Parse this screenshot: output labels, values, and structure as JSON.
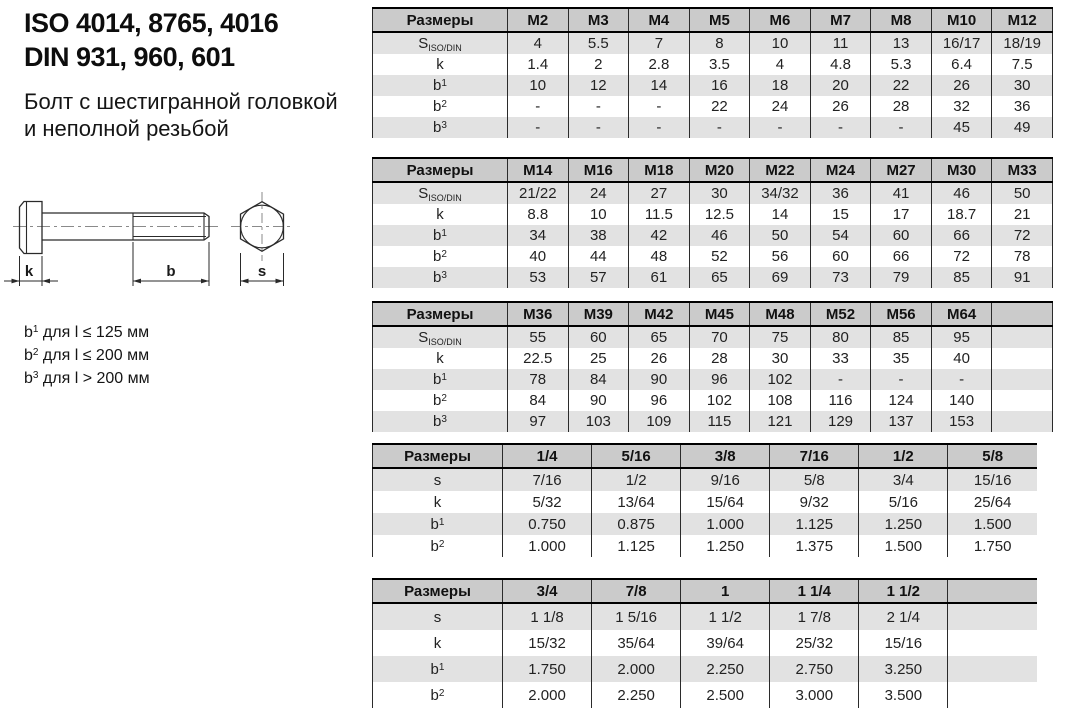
{
  "colors": {
    "header_bg": "#cbcbcb",
    "band_bg": "#e2e2e2",
    "border": "#000000",
    "border_thin": "#2b2b2b"
  },
  "header": {
    "title_line1": "ISO 4014, 8765, 4016",
    "title_line2": "DIN 931, 960, 601",
    "subtitle_line1": "Болт с шестигранной головкой",
    "subtitle_line2": "и неполной резьбой"
  },
  "drawing": {
    "labels": {
      "k": "k",
      "b": "b",
      "s": "s"
    }
  },
  "notes": [
    {
      "base": "b",
      "sup": "1",
      "text": "для l ≤ 125 мм"
    },
    {
      "base": "b",
      "sup": "2",
      "text": "для l ≤ 200 мм"
    },
    {
      "base": "b",
      "sup": "3",
      "text": "для l > 200 мм"
    }
  ],
  "tables": [
    {
      "header_label": "Размеры",
      "columns": [
        "M2",
        "M3",
        "M4",
        "M5",
        "M6",
        "M7",
        "M8",
        "M10",
        "M12"
      ],
      "rows": [
        {
          "label": "S",
          "sub": "ISO/DIN",
          "values": [
            "4",
            "5.5",
            "7",
            "8",
            "10",
            "11",
            "13",
            "16/17",
            "18/19"
          ]
        },
        {
          "label": "k",
          "values": [
            "1.4",
            "2",
            "2.8",
            "3.5",
            "4",
            "4.8",
            "5.3",
            "6.4",
            "7.5"
          ]
        },
        {
          "label": "b",
          "sup": "1",
          "values": [
            "10",
            "12",
            "14",
            "16",
            "18",
            "20",
            "22",
            "26",
            "30"
          ]
        },
        {
          "label": "b",
          "sup": "2",
          "values": [
            "-",
            "-",
            "-",
            "22",
            "24",
            "26",
            "28",
            "32",
            "36"
          ]
        },
        {
          "label": "b",
          "sup": "3",
          "values": [
            "-",
            "-",
            "-",
            "-",
            "-",
            "-",
            "-",
            "45",
            "49"
          ]
        }
      ]
    },
    {
      "header_label": "Размеры",
      "columns": [
        "M14",
        "M16",
        "M18",
        "M20",
        "M22",
        "M24",
        "M27",
        "M30",
        "M33"
      ],
      "rows": [
        {
          "label": "S",
          "sub": "ISO/DIN",
          "values": [
            "21/22",
            "24",
            "27",
            "30",
            "34/32",
            "36",
            "41",
            "46",
            "50"
          ]
        },
        {
          "label": "k",
          "values": [
            "8.8",
            "10",
            "11.5",
            "12.5",
            "14",
            "15",
            "17",
            "18.7",
            "21"
          ]
        },
        {
          "label": "b",
          "sup": "1",
          "values": [
            "34",
            "38",
            "42",
            "46",
            "50",
            "54",
            "60",
            "66",
            "72"
          ]
        },
        {
          "label": "b",
          "sup": "2",
          "values": [
            "40",
            "44",
            "48",
            "52",
            "56",
            "60",
            "66",
            "72",
            "78"
          ]
        },
        {
          "label": "b",
          "sup": "3",
          "values": [
            "53",
            "57",
            "61",
            "65",
            "69",
            "73",
            "79",
            "85",
            "91"
          ]
        }
      ]
    },
    {
      "header_label": "Размеры",
      "columns": [
        "M36",
        "M39",
        "M42",
        "M45",
        "M48",
        "M52",
        "M56",
        "M64",
        ""
      ],
      "rows": [
        {
          "label": "S",
          "sub": "ISO/DIN",
          "values": [
            "55",
            "60",
            "65",
            "70",
            "75",
            "80",
            "85",
            "95",
            ""
          ]
        },
        {
          "label": "k",
          "values": [
            "22.5",
            "25",
            "26",
            "28",
            "30",
            "33",
            "35",
            "40",
            ""
          ]
        },
        {
          "label": "b",
          "sup": "1",
          "values": [
            "78",
            "84",
            "90",
            "96",
            "102",
            "-",
            "-",
            "-",
            ""
          ]
        },
        {
          "label": "b",
          "sup": "2",
          "values": [
            "84",
            "90",
            "96",
            "102",
            "108",
            "116",
            "124",
            "140",
            ""
          ]
        },
        {
          "label": "b",
          "sup": "3",
          "values": [
            "97",
            "103",
            "109",
            "115",
            "121",
            "129",
            "137",
            "153",
            ""
          ]
        }
      ]
    },
    {
      "header_label": "Размеры",
      "columns": [
        "1/4",
        "5/16",
        "3/8",
        "7/16",
        "1/2",
        "5/8"
      ],
      "rows": [
        {
          "label": "s",
          "values": [
            "7/16",
            "1/2",
            "9/16",
            "5/8",
            "3/4",
            "15/16"
          ]
        },
        {
          "label": "k",
          "values": [
            "5/32",
            "13/64",
            "15/64",
            "9/32",
            "5/16",
            "25/64"
          ]
        },
        {
          "label": "b",
          "sup": "1",
          "values": [
            "0.750",
            "0.875",
            "1.000",
            "1.125",
            "1.250",
            "1.500"
          ]
        },
        {
          "label": "b",
          "sup": "2",
          "values": [
            "1.000",
            "1.125",
            "1.250",
            "1.375",
            "1.500",
            "1.750"
          ]
        }
      ]
    },
    {
      "header_label": "Размеры",
      "columns": [
        "3/4",
        "7/8",
        "1",
        "1 1/4",
        "1 1/2",
        ""
      ],
      "rows": [
        {
          "label": "s",
          "values": [
            "1 1/8",
            "1 5/16",
            "1 1/2",
            "1 7/8",
            "2 1/4",
            ""
          ]
        },
        {
          "label": "k",
          "values": [
            "15/32",
            "35/64",
            "39/64",
            "25/32",
            "15/16",
            ""
          ]
        },
        {
          "label": "b",
          "sup": "1",
          "values": [
            "1.750",
            "2.000",
            "2.250",
            "2.750",
            "3.250",
            ""
          ]
        },
        {
          "label": "b",
          "sup": "2",
          "values": [
            "2.000",
            "2.250",
            "2.500",
            "3.000",
            "3.500",
            ""
          ]
        }
      ]
    }
  ]
}
